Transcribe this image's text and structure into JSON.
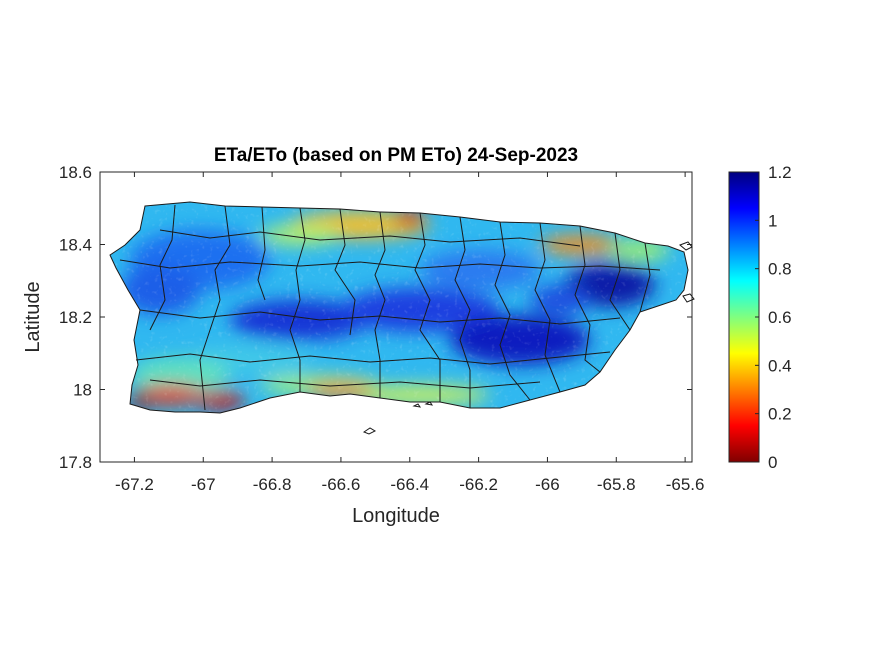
{
  "chart_data": {
    "type": "heatmap",
    "title": "ETa/ETo (based on PM ETo) 24-Sep-2023",
    "xlabel": "Longitude",
    "ylabel": "Latitude",
    "xlim": [
      -67.3,
      -65.58
    ],
    "ylim": [
      17.8,
      18.6
    ],
    "x_ticks": [
      -67.2,
      -67,
      -66.8,
      -66.6,
      -66.4,
      -66.2,
      -66,
      -65.8,
      -65.6
    ],
    "x_tick_labels": [
      "-67.2",
      "-67",
      "-66.8",
      "-66.6",
      "-66.4",
      "-66.2",
      "-66",
      "-65.8",
      "-65.6"
    ],
    "y_ticks": [
      17.8,
      18,
      18.2,
      18.4,
      18.6
    ],
    "y_tick_labels": [
      "17.8",
      "18",
      "18.2",
      "18.4",
      "18.6"
    ],
    "colorbar": {
      "colormap": "jet",
      "range": [
        0,
        1.2
      ],
      "ticks": [
        0,
        0.2,
        0.4,
        0.6,
        0.8,
        1,
        1.2
      ],
      "tick_labels": [
        "0",
        "0.2",
        "0.4",
        "0.6",
        "0.8",
        "1",
        "1.2"
      ]
    },
    "region": "Puerto Rico",
    "grid": false,
    "regions_of_note": [
      {
        "lon": -67.15,
        "lat": 17.98,
        "value": 0.1
      },
      {
        "lon": -66.95,
        "lat": 17.99,
        "value": 0.15
      },
      {
        "lon": -66.5,
        "lat": 18.46,
        "value": 0.35
      },
      {
        "lon": -65.92,
        "lat": 18.4,
        "value": 0.35
      },
      {
        "lon": -65.82,
        "lat": 18.28,
        "value": 1.15
      },
      {
        "lon": -66.05,
        "lat": 18.1,
        "value": 1.1
      },
      {
        "lon": -66.75,
        "lat": 18.15,
        "value": 1.05
      }
    ]
  }
}
